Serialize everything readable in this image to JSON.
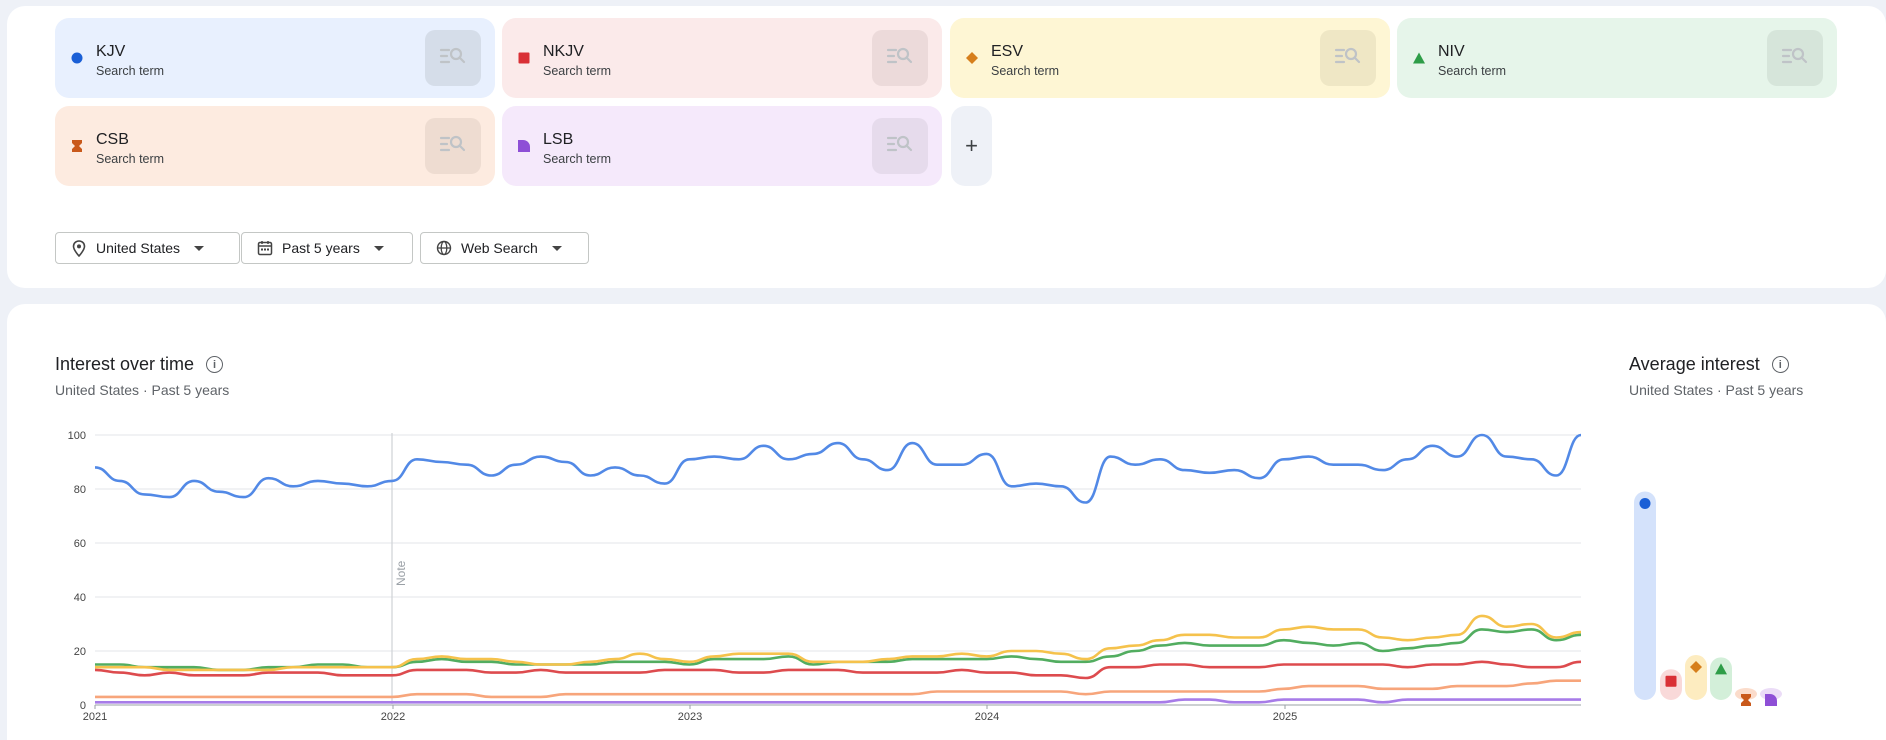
{
  "search_terms": [
    {
      "name": "KJV",
      "subtitle": "Search term",
      "bg": "#e8f0fe",
      "btn": "#d5dde9",
      "color": "#1a5fd6",
      "shape": "circle"
    },
    {
      "name": "NKJV",
      "subtitle": "Search term",
      "bg": "#fbeaea",
      "btn": "#ecdada",
      "color": "#d93036",
      "shape": "square"
    },
    {
      "name": "ESV",
      "subtitle": "Search term",
      "bg": "#fef6d4",
      "btn": "#efe7c5",
      "color": "#d67f1c",
      "shape": "diamond"
    },
    {
      "name": "NIV",
      "subtitle": "Search term",
      "bg": "#e6f5ea",
      "btn": "#d6e5da",
      "color": "#2e9d48",
      "shape": "triangle"
    },
    {
      "name": "CSB",
      "subtitle": "Search term",
      "bg": "#fdebe0",
      "btn": "#eedcd1",
      "color": "#c9591b",
      "shape": "hourglass"
    },
    {
      "name": "LSB",
      "subtitle": "Search term",
      "bg": "#f5e9fb",
      "btn": "#e6dbec",
      "color": "#8e4fd6",
      "shape": "quarter"
    }
  ],
  "add_term_label": "+",
  "filters": {
    "region": "United States",
    "time": "Past 5 years",
    "search_type": "Web Search"
  },
  "interest_over_time": {
    "title": "Interest over time",
    "subtitle": "United States · Past 5 years",
    "note_label": "Note"
  },
  "average_interest": {
    "title": "Average interest",
    "subtitle": "United States · Past 5 years"
  },
  "chart_data": {
    "type": "line",
    "title": "Interest over time",
    "xlabel": "",
    "ylabel": "",
    "ylim": [
      0,
      100
    ],
    "yticks": [
      "0",
      "20",
      "40",
      "60",
      "80",
      "100"
    ],
    "xticks": [
      "2021",
      "2022",
      "2023",
      "2024",
      "2025"
    ],
    "grid": true,
    "series": [
      {
        "name": "KJV",
        "color": "#5289e6",
        "values": [
          88,
          83,
          78,
          77,
          83,
          79,
          77,
          84,
          81,
          83,
          82,
          81,
          83,
          91,
          90,
          89,
          85,
          89,
          92,
          90,
          85,
          88,
          85,
          82,
          91,
          92,
          91,
          96,
          91,
          93,
          97,
          91,
          87,
          97,
          89,
          89,
          93,
          81,
          82,
          81,
          75,
          92,
          89,
          91,
          87,
          86,
          87,
          84,
          91,
          92,
          89,
          89,
          87,
          91,
          96,
          92,
          100,
          92,
          91,
          85,
          100
        ]
      },
      {
        "name": "NKJV",
        "color": "#dd4b4e",
        "values": [
          13,
          12,
          11,
          12,
          11,
          11,
          11,
          12,
          12,
          12,
          11,
          11,
          11,
          13,
          13,
          13,
          12,
          12,
          13,
          12,
          12,
          12,
          12,
          13,
          13,
          13,
          12,
          12,
          13,
          13,
          13,
          12,
          12,
          12,
          12,
          13,
          12,
          12,
          11,
          11,
          10,
          14,
          14,
          15,
          15,
          14,
          14,
          14,
          15,
          15,
          15,
          15,
          15,
          14,
          15,
          15,
          16,
          15,
          14,
          14,
          16
        ]
      },
      {
        "name": "ESV",
        "color": "#f5c24c",
        "values": [
          14,
          14,
          14,
          13,
          13,
          13,
          13,
          13,
          14,
          14,
          14,
          14,
          14,
          17,
          18,
          17,
          17,
          16,
          15,
          15,
          16,
          17,
          19,
          17,
          16,
          18,
          19,
          19,
          19,
          16,
          16,
          16,
          17,
          18,
          18,
          19,
          18,
          20,
          20,
          19,
          17,
          21,
          22,
          24,
          26,
          26,
          25,
          25,
          28,
          29,
          28,
          28,
          25,
          24,
          25,
          26,
          33,
          29,
          30,
          25,
          27
        ]
      },
      {
        "name": "NIV",
        "color": "#52ad60",
        "values": [
          15,
          15,
          14,
          14,
          14,
          13,
          13,
          14,
          14,
          15,
          15,
          14,
          14,
          16,
          17,
          16,
          16,
          15,
          15,
          15,
          15,
          16,
          16,
          16,
          15,
          17,
          17,
          17,
          18,
          15,
          16,
          16,
          16,
          17,
          17,
          17,
          17,
          18,
          17,
          16,
          16,
          18,
          20,
          22,
          23,
          22,
          22,
          22,
          24,
          23,
          22,
          23,
          20,
          21,
          22,
          23,
          28,
          27,
          28,
          24,
          26
        ]
      },
      {
        "name": "CSB",
        "color": "#f7a57b",
        "values": [
          3,
          3,
          3,
          3,
          3,
          3,
          3,
          3,
          3,
          3,
          3,
          3,
          3,
          4,
          4,
          4,
          3,
          3,
          3,
          4,
          4,
          4,
          4,
          4,
          4,
          4,
          4,
          4,
          4,
          4,
          4,
          4,
          4,
          4,
          5,
          5,
          5,
          5,
          5,
          5,
          4,
          5,
          5,
          5,
          5,
          5,
          5,
          5,
          6,
          7,
          7,
          7,
          6,
          6,
          6,
          7,
          7,
          7,
          8,
          9,
          9
        ]
      },
      {
        "name": "LSB",
        "color": "#a77ce8",
        "values": [
          1,
          1,
          1,
          1,
          1,
          1,
          1,
          1,
          1,
          1,
          1,
          1,
          1,
          1,
          1,
          1,
          1,
          1,
          1,
          1,
          1,
          1,
          1,
          1,
          1,
          1,
          1,
          1,
          1,
          1,
          1,
          1,
          1,
          1,
          1,
          1,
          1,
          1,
          1,
          1,
          1,
          1,
          1,
          1,
          2,
          2,
          1,
          1,
          2,
          2,
          2,
          2,
          1,
          2,
          2,
          2,
          2,
          2,
          2,
          2,
          2
        ]
      }
    ],
    "averages": [
      {
        "name": "KJV",
        "value": 88
      },
      {
        "name": "NKJV",
        "value": 13
      },
      {
        "name": "ESV",
        "value": 19
      },
      {
        "name": "NIV",
        "value": 18
      },
      {
        "name": "CSB",
        "value": 5
      },
      {
        "name": "LSB",
        "value": 1
      }
    ]
  }
}
